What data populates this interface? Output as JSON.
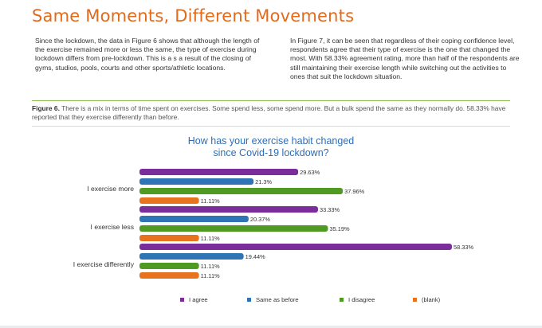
{
  "page": {
    "title": "Same Moments, Different Movements",
    "para_left": "Since the lockdown, the data in Figure 6 shows that although the length of the exercise remained more or less the same, the type of exercise during lockdown differs from pre-lockdown. This is a s a result of the closing of gyms, studios, pools, courts and other sports/athletic locations.",
    "para_right": "In Figure 7, it can be seen that regardless of their coping confidence level, respondents agree that their type of exercise is the one that changed the most. With 58.33% agreement rating, more than half of the respondents are still maintaining their exercise length while switching out the activities to ones that suit the lockdown situation.",
    "figure_label": "Figure 6.",
    "figure_caption": "There is a mix in terms of time spent on exercises. Some spend less, some spend more. But a bulk spend the same as they normally do. 58.33% have reported that they exercise differently than before."
  },
  "chart_data": {
    "type": "bar",
    "orientation": "horizontal",
    "title_line1": "How has your exercise habit changed",
    "title_line2": "since Covid-19 lockdown?",
    "categories": [
      "I exercise more",
      "I exercise less",
      "I exercise differently"
    ],
    "series": [
      {
        "name": "I agree",
        "color": "#7b2d9c",
        "values": [
          29.63,
          33.33,
          58.33
        ],
        "labels": [
          "29.63%",
          "33.33%",
          "58.33%"
        ]
      },
      {
        "name": "Same as before",
        "color": "#2f75b5",
        "values": [
          21.3,
          20.37,
          19.44
        ],
        "labels": [
          "21.3%",
          "20.37%",
          "19.44%"
        ]
      },
      {
        "name": "I disagree",
        "color": "#4e9a23",
        "values": [
          37.96,
          35.19,
          11.11
        ],
        "labels": [
          "37.96%",
          "35.19%",
          "11.11%"
        ]
      },
      {
        "name": "(blank)",
        "color": "#e8731f",
        "values": [
          11.11,
          11.11,
          11.11
        ],
        "labels": [
          "11.11%",
          "11.11%",
          "11.11%"
        ]
      }
    ],
    "xlim": [
      0,
      60
    ],
    "grid": false,
    "legend_position": "bottom"
  }
}
